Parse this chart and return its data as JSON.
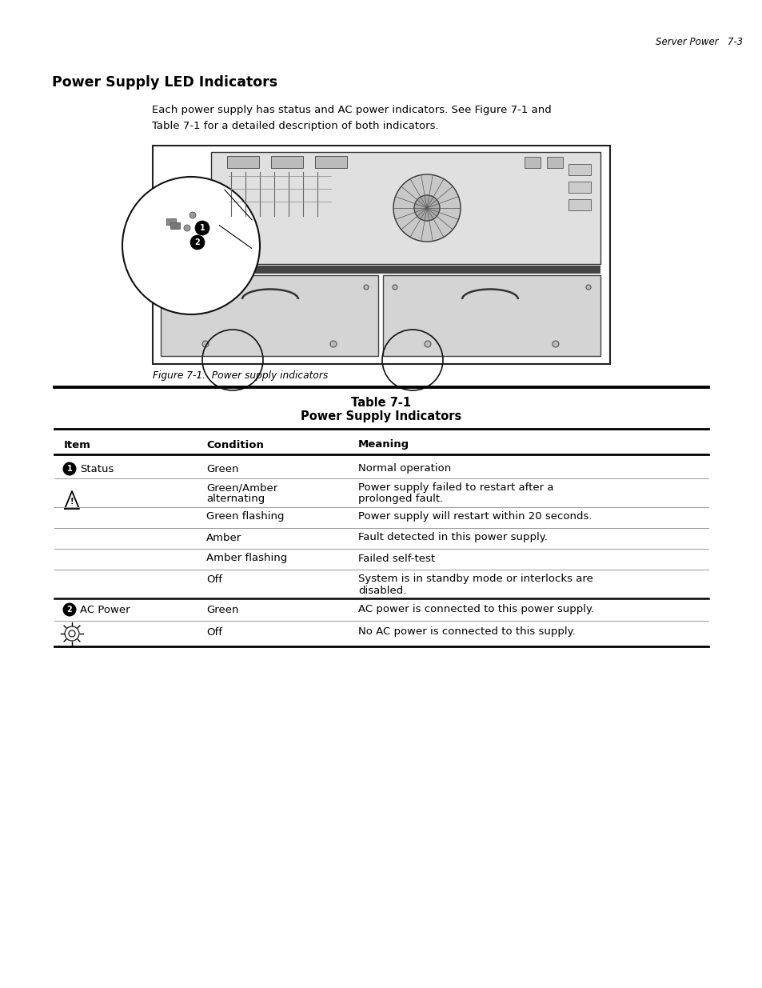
{
  "page_header": "Server Power   7-3",
  "section_title": "Power Supply LED Indicators",
  "intro_line1": "Each power supply has status and AC power indicators. See Figure 7-1 and",
  "intro_line2": "Table 7-1 for a detailed description of both indicators.",
  "figure_caption": "Figure 7-1.  Power supply indicators",
  "table_title_line1": "Table 7-1",
  "table_title_line2": "Power Supply Indicators",
  "table_headers": [
    "Item",
    "Condition",
    "Meaning"
  ],
  "bg_color": "#ffffff",
  "text_color": "#000000"
}
